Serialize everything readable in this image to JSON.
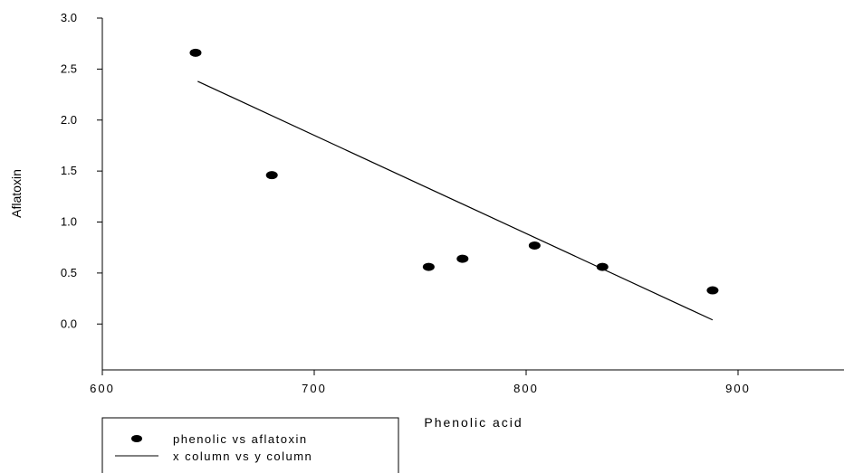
{
  "chart_data": {
    "type": "scatter",
    "title": "",
    "xlabel": "Phenolic acid",
    "ylabel": "Aflatoxin",
    "xlim": [
      600,
      950
    ],
    "ylim": [
      -0.45,
      3.0
    ],
    "x_ticks": [
      600,
      700,
      800,
      900
    ],
    "x_tick_labels": [
      "600",
      "700",
      "800",
      "900"
    ],
    "y_ticks": [
      0.0,
      0.5,
      1.0,
      1.5,
      2.0,
      2.5,
      3.0
    ],
    "y_tick_labels": [
      "0.0",
      "0.5",
      "1.0",
      "1.5",
      "2.0",
      "2.5",
      "3.0"
    ],
    "grid": false,
    "legend_position": "bottom-left",
    "series": [
      {
        "name": "phenolic vs aflatoxin",
        "kind": "scatter",
        "color": "#000000",
        "x": [
          644,
          680,
          754,
          770,
          804,
          836,
          888
        ],
        "y": [
          2.66,
          1.46,
          0.56,
          0.64,
          0.77,
          0.56,
          0.33
        ]
      },
      {
        "name": "x column vs y column",
        "kind": "line",
        "color": "#000000",
        "x": [
          645,
          888
        ],
        "y": [
          2.38,
          0.04
        ]
      }
    ]
  }
}
